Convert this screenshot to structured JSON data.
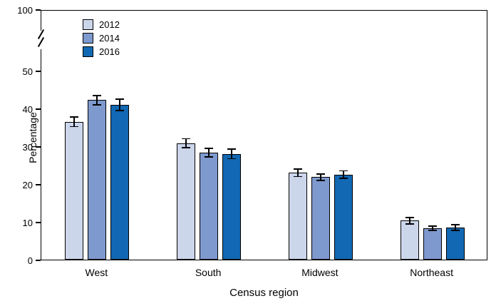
{
  "chart_data": {
    "type": "bar",
    "title": "",
    "xlabel": "Census region",
    "ylabel": "Percentage",
    "categories": [
      "West",
      "South",
      "Midwest",
      "Northeast"
    ],
    "series": [
      {
        "name": "2012",
        "color": "#ccd6eb",
        "values": [
          36.5,
          30.8,
          23.0,
          10.3
        ],
        "errors": [
          1.3,
          1.2,
          1.0,
          0.8
        ]
      },
      {
        "name": "2014",
        "color": "#7e99ce",
        "values": [
          42.2,
          28.3,
          21.8,
          8.3
        ],
        "errors": [
          1.2,
          1.2,
          0.9,
          0.6
        ]
      },
      {
        "name": "2016",
        "color": "#1268b3",
        "values": [
          41.0,
          28.0,
          22.5,
          8.5
        ],
        "errors": [
          1.5,
          1.3,
          1.0,
          0.7
        ]
      }
    ],
    "yticks": [
      0,
      10,
      20,
      30,
      40,
      50
    ],
    "ytick_top": 100,
    "axis_break": true,
    "ylim": [
      0,
      50
    ],
    "legend_position": "top-left",
    "grid": false
  }
}
